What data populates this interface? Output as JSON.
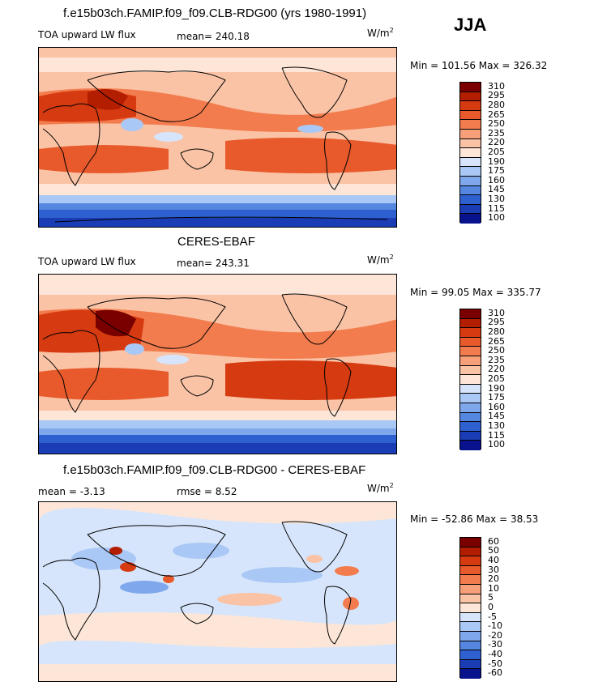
{
  "season": "JJA",
  "panels": [
    {
      "title": "f.e15b03ch.FAMIP.f09_f09.CLB-RDG00 (yrs 1980-1991)",
      "left_label": "TOA upward LW flux",
      "center_label": "mean=  240.18",
      "units": "W/m",
      "units_sup": "2",
      "minmax": "Min = 101.56 Max = 326.32",
      "levels": [
        "310",
        "295",
        "280",
        "265",
        "250",
        "235",
        "220",
        "205",
        "190",
        "175",
        "160",
        "145",
        "130",
        "115",
        "100"
      ]
    },
    {
      "title": "CERES-EBAF",
      "left_label": "TOA upward LW flux",
      "center_label": "mean=  243.31",
      "units": "W/m",
      "units_sup": "2",
      "minmax": "Min =  99.05 Max = 335.77",
      "levels": [
        "310",
        "295",
        "280",
        "265",
        "250",
        "235",
        "220",
        "205",
        "190",
        "175",
        "160",
        "145",
        "130",
        "115",
        "100"
      ]
    },
    {
      "title": "f.e15b03ch.FAMIP.f09_f09.CLB-RDG00 - CERES-EBAF",
      "left_label": "mean =   -3.13",
      "center_label": "rmse =    8.52",
      "units": "W/m",
      "units_sup": "2",
      "minmax": "Min = -52.86 Max =  38.53",
      "levels": [
        "60",
        "50",
        "40",
        "30",
        "20",
        "10",
        "5",
        "0",
        "-5",
        "-10",
        "-20",
        "-30",
        "-40",
        "-50",
        "-60"
      ]
    }
  ],
  "colors": {
    "abs_scale": [
      "#7a0000",
      "#b31d00",
      "#d63a10",
      "#e85a2c",
      "#f27c4e",
      "#f6a07a",
      "#fac3a6",
      "#fde6d8",
      "#d6e5fb",
      "#aac8f5",
      "#7fa8ec",
      "#5586e0",
      "#2f60cf",
      "#1a3cb5",
      "#08128c"
    ],
    "diff_scale": [
      "#7a0000",
      "#b31d00",
      "#d63a10",
      "#e85a2c",
      "#f27c4e",
      "#f6a07a",
      "#fac3a6",
      "#fde6d8",
      "#d6e5fb",
      "#aac8f5",
      "#7fa8ec",
      "#5586e0",
      "#2f60cf",
      "#1a3cb5",
      "#08128c"
    ]
  }
}
